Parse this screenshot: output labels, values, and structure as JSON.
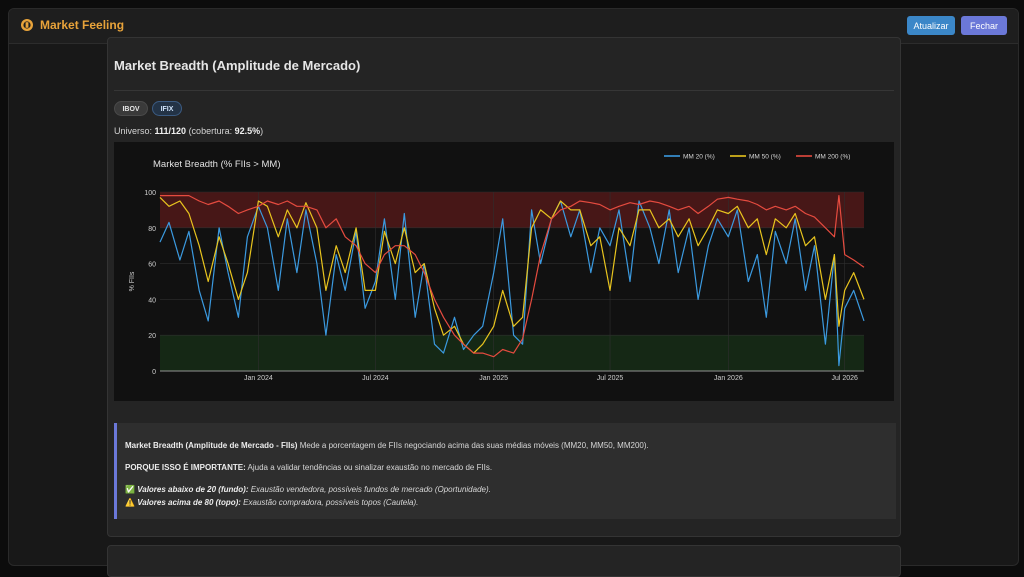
{
  "app": {
    "title": "Market Feeling"
  },
  "toolbar": {
    "refresh_label": "Atualizar",
    "close_label": "Fechar"
  },
  "card": {
    "title": "Market Breadth (Amplitude de Mercado)",
    "tabs": [
      {
        "label": "IBOV"
      },
      {
        "label": "IFIX"
      }
    ],
    "universe": {
      "prefix": "Universo: ",
      "count": "111/120",
      "mid": " (cobertura: ",
      "coverage": "92.5%",
      "suffix": ")"
    }
  },
  "info": {
    "l1_bold": "Market Breadth (Amplitude de Mercado - FIIs)",
    "l1_text": " Mede a porcentagem de FIIs negociando acima das suas médias móveis (MM20, MM50, MM200).",
    "l2_bold": "PORQUE ISSO É IMPORTANTE:",
    "l2_text": " Ajuda a validar tendências ou sinalizar exaustão no mercado de FIIs.",
    "l3_icon": "✅",
    "l3_bold": "Valores abaixo de 20 (fundo):",
    "l3_text": " Exaustão vendedora, possíveis fundos de mercado (Oportunidade).",
    "l4_icon": "⚠️",
    "l4_bold": "Valores acima de 80 (topo):",
    "l4_text": " Exaustão compradora, possíveis topos (Cautela)."
  },
  "colors": {
    "mm20": "#3b9ae0",
    "mm50": "#e8c41e",
    "mm200": "#e54b3f",
    "accent": "#6b78d8",
    "brand": "#e8a33a"
  },
  "chart_data": {
    "type": "line",
    "title": "Market Breadth (% FIIs > MM)",
    "xlabel": "",
    "ylabel": "% FIIs",
    "ylim": [
      0,
      100
    ],
    "yticks": [
      0,
      20,
      40,
      60,
      80,
      100
    ],
    "xlim": [
      "2023-08-01",
      "2026-07-31"
    ],
    "xticks": [
      {
        "date": "2024-01-01",
        "label": "Jan 2024"
      },
      {
        "date": "2024-07-01",
        "label": "Jul 2024"
      },
      {
        "date": "2025-01-01",
        "label": "Jan 2025"
      },
      {
        "date": "2025-07-01",
        "label": "Jul 2025"
      },
      {
        "date": "2026-01-01",
        "label": "Jan 2026"
      },
      {
        "date": "2026-07-01",
        "label": "Jul 2026"
      }
    ],
    "legend": "top-right",
    "zones": [
      {
        "from": 80,
        "to": 100,
        "color": "#5a1a1a"
      },
      {
        "from": 0,
        "to": 20,
        "color": "#173017"
      }
    ],
    "grid": true,
    "series": [
      {
        "name": "MM 20 (%)",
        "color": "#3b9ae0",
        "points": [
          [
            "2023-08-01",
            72
          ],
          [
            "2023-08-15",
            83
          ],
          [
            "2023-09-01",
            62
          ],
          [
            "2023-09-15",
            78
          ],
          [
            "2023-10-01",
            45
          ],
          [
            "2023-10-15",
            28
          ],
          [
            "2023-11-01",
            80
          ],
          [
            "2023-11-15",
            55
          ],
          [
            "2023-12-01",
            30
          ],
          [
            "2023-12-15",
            75
          ],
          [
            "2024-01-01",
            92
          ],
          [
            "2024-01-15",
            80
          ],
          [
            "2024-02-01",
            45
          ],
          [
            "2024-02-15",
            85
          ],
          [
            "2024-03-01",
            55
          ],
          [
            "2024-03-15",
            90
          ],
          [
            "2024-04-01",
            60
          ],
          [
            "2024-04-15",
            20
          ],
          [
            "2024-05-01",
            65
          ],
          [
            "2024-05-15",
            45
          ],
          [
            "2024-06-01",
            78
          ],
          [
            "2024-06-15",
            35
          ],
          [
            "2024-07-01",
            50
          ],
          [
            "2024-07-15",
            85
          ],
          [
            "2024-08-01",
            40
          ],
          [
            "2024-08-15",
            88
          ],
          [
            "2024-09-01",
            30
          ],
          [
            "2024-09-15",
            60
          ],
          [
            "2024-10-01",
            15
          ],
          [
            "2024-10-15",
            10
          ],
          [
            "2024-11-01",
            30
          ],
          [
            "2024-11-15",
            12
          ],
          [
            "2024-12-01",
            20
          ],
          [
            "2024-12-15",
            25
          ],
          [
            "2025-01-01",
            55
          ],
          [
            "2025-01-15",
            85
          ],
          [
            "2025-02-01",
            20
          ],
          [
            "2025-02-15",
            15
          ],
          [
            "2025-03-01",
            90
          ],
          [
            "2025-03-15",
            60
          ],
          [
            "2025-04-01",
            85
          ],
          [
            "2025-04-15",
            95
          ],
          [
            "2025-05-01",
            75
          ],
          [
            "2025-05-15",
            90
          ],
          [
            "2025-06-01",
            55
          ],
          [
            "2025-06-15",
            80
          ],
          [
            "2025-07-01",
            70
          ],
          [
            "2025-07-15",
            90
          ],
          [
            "2025-08-01",
            50
          ],
          [
            "2025-08-15",
            95
          ],
          [
            "2025-09-01",
            80
          ],
          [
            "2025-09-15",
            60
          ],
          [
            "2025-10-01",
            90
          ],
          [
            "2025-10-15",
            55
          ],
          [
            "2025-11-01",
            80
          ],
          [
            "2025-11-15",
            40
          ],
          [
            "2025-12-01",
            70
          ],
          [
            "2025-12-15",
            85
          ],
          [
            "2026-01-01",
            75
          ],
          [
            "2026-01-15",
            90
          ],
          [
            "2026-02-01",
            50
          ],
          [
            "2026-02-15",
            65
          ],
          [
            "2026-03-01",
            30
          ],
          [
            "2026-03-15",
            78
          ],
          [
            "2026-04-01",
            60
          ],
          [
            "2026-04-15",
            85
          ],
          [
            "2026-05-01",
            45
          ],
          [
            "2026-05-15",
            70
          ],
          [
            "2026-06-01",
            15
          ],
          [
            "2026-06-15",
            65
          ],
          [
            "2026-06-22",
            3
          ],
          [
            "2026-07-01",
            35
          ],
          [
            "2026-07-15",
            45
          ],
          [
            "2026-07-31",
            28
          ]
        ]
      },
      {
        "name": "MM 50 (%)",
        "color": "#e8c41e",
        "points": [
          [
            "2023-08-01",
            97
          ],
          [
            "2023-08-15",
            92
          ],
          [
            "2023-09-01",
            95
          ],
          [
            "2023-09-15",
            88
          ],
          [
            "2023-10-01",
            70
          ],
          [
            "2023-10-15",
            50
          ],
          [
            "2023-11-01",
            75
          ],
          [
            "2023-11-15",
            60
          ],
          [
            "2023-12-01",
            40
          ],
          [
            "2023-12-15",
            55
          ],
          [
            "2024-01-01",
            95
          ],
          [
            "2024-01-15",
            92
          ],
          [
            "2024-02-01",
            75
          ],
          [
            "2024-02-15",
            90
          ],
          [
            "2024-03-01",
            80
          ],
          [
            "2024-03-15",
            94
          ],
          [
            "2024-04-01",
            80
          ],
          [
            "2024-04-15",
            45
          ],
          [
            "2024-05-01",
            70
          ],
          [
            "2024-05-15",
            55
          ],
          [
            "2024-06-01",
            80
          ],
          [
            "2024-06-15",
            45
          ],
          [
            "2024-07-01",
            45
          ],
          [
            "2024-07-15",
            78
          ],
          [
            "2024-08-01",
            60
          ],
          [
            "2024-08-15",
            80
          ],
          [
            "2024-09-01",
            55
          ],
          [
            "2024-09-15",
            60
          ],
          [
            "2024-10-01",
            35
          ],
          [
            "2024-10-15",
            20
          ],
          [
            "2024-11-01",
            25
          ],
          [
            "2024-11-15",
            15
          ],
          [
            "2024-12-01",
            10
          ],
          [
            "2024-12-15",
            15
          ],
          [
            "2025-01-01",
            25
          ],
          [
            "2025-01-15",
            45
          ],
          [
            "2025-02-01",
            25
          ],
          [
            "2025-02-15",
            30
          ],
          [
            "2025-03-01",
            80
          ],
          [
            "2025-03-15",
            90
          ],
          [
            "2025-04-01",
            85
          ],
          [
            "2025-04-15",
            95
          ],
          [
            "2025-05-01",
            90
          ],
          [
            "2025-05-15",
            90
          ],
          [
            "2025-06-01",
            70
          ],
          [
            "2025-06-15",
            75
          ],
          [
            "2025-07-01",
            45
          ],
          [
            "2025-07-15",
            80
          ],
          [
            "2025-08-01",
            70
          ],
          [
            "2025-08-15",
            90
          ],
          [
            "2025-09-01",
            90
          ],
          [
            "2025-09-15",
            80
          ],
          [
            "2025-10-01",
            85
          ],
          [
            "2025-10-15",
            75
          ],
          [
            "2025-11-01",
            85
          ],
          [
            "2025-11-15",
            70
          ],
          [
            "2025-12-01",
            80
          ],
          [
            "2025-12-15",
            90
          ],
          [
            "2026-01-01",
            88
          ],
          [
            "2026-01-15",
            92
          ],
          [
            "2026-02-01",
            80
          ],
          [
            "2026-02-15",
            85
          ],
          [
            "2026-03-01",
            65
          ],
          [
            "2026-03-15",
            85
          ],
          [
            "2026-04-01",
            80
          ],
          [
            "2026-04-15",
            88
          ],
          [
            "2026-05-01",
            70
          ],
          [
            "2026-05-15",
            75
          ],
          [
            "2026-06-01",
            40
          ],
          [
            "2026-06-15",
            65
          ],
          [
            "2026-06-22",
            25
          ],
          [
            "2026-07-01",
            45
          ],
          [
            "2026-07-15",
            55
          ],
          [
            "2026-07-31",
            40
          ]
        ]
      },
      {
        "name": "MM 200 (%)",
        "color": "#e54b3f",
        "points": [
          [
            "2023-08-01",
            98
          ],
          [
            "2023-08-15",
            98
          ],
          [
            "2023-09-01",
            98
          ],
          [
            "2023-09-15",
            98
          ],
          [
            "2023-10-01",
            95
          ],
          [
            "2023-10-15",
            93
          ],
          [
            "2023-11-01",
            95
          ],
          [
            "2023-11-15",
            92
          ],
          [
            "2023-12-01",
            88
          ],
          [
            "2023-12-15",
            90
          ],
          [
            "2024-01-01",
            92
          ],
          [
            "2024-01-15",
            95
          ],
          [
            "2024-02-01",
            93
          ],
          [
            "2024-02-15",
            95
          ],
          [
            "2024-03-01",
            92
          ],
          [
            "2024-03-15",
            92
          ],
          [
            "2024-04-01",
            90
          ],
          [
            "2024-04-15",
            80
          ],
          [
            "2024-05-01",
            85
          ],
          [
            "2024-05-15",
            75
          ],
          [
            "2024-06-01",
            70
          ],
          [
            "2024-06-15",
            60
          ],
          [
            "2024-07-01",
            55
          ],
          [
            "2024-07-15",
            65
          ],
          [
            "2024-08-01",
            70
          ],
          [
            "2024-08-15",
            70
          ],
          [
            "2024-09-01",
            65
          ],
          [
            "2024-09-15",
            55
          ],
          [
            "2024-10-01",
            40
          ],
          [
            "2024-10-15",
            30
          ],
          [
            "2024-11-01",
            20
          ],
          [
            "2024-11-15",
            15
          ],
          [
            "2024-12-01",
            10
          ],
          [
            "2024-12-15",
            10
          ],
          [
            "2025-01-01",
            8
          ],
          [
            "2025-01-15",
            12
          ],
          [
            "2025-02-01",
            10
          ],
          [
            "2025-02-15",
            18
          ],
          [
            "2025-03-01",
            40
          ],
          [
            "2025-03-15",
            65
          ],
          [
            "2025-04-01",
            85
          ],
          [
            "2025-04-15",
            90
          ],
          [
            "2025-05-01",
            92
          ],
          [
            "2025-05-15",
            95
          ],
          [
            "2025-06-01",
            94
          ],
          [
            "2025-06-15",
            93
          ],
          [
            "2025-07-01",
            90
          ],
          [
            "2025-07-15",
            92
          ],
          [
            "2025-08-01",
            94
          ],
          [
            "2025-08-15",
            93
          ],
          [
            "2025-09-01",
            95
          ],
          [
            "2025-09-15",
            94
          ],
          [
            "2025-10-01",
            92
          ],
          [
            "2025-10-15",
            90
          ],
          [
            "2025-11-01",
            92
          ],
          [
            "2025-11-15",
            88
          ],
          [
            "2025-12-01",
            92
          ],
          [
            "2025-12-15",
            96
          ],
          [
            "2026-01-01",
            97
          ],
          [
            "2026-01-15",
            96
          ],
          [
            "2026-02-01",
            95
          ],
          [
            "2026-02-15",
            93
          ],
          [
            "2026-03-01",
            90
          ],
          [
            "2026-03-15",
            92
          ],
          [
            "2026-04-01",
            90
          ],
          [
            "2026-04-15",
            92
          ],
          [
            "2026-05-01",
            88
          ],
          [
            "2026-05-15",
            86
          ],
          [
            "2026-06-01",
            80
          ],
          [
            "2026-06-15",
            75
          ],
          [
            "2026-06-22",
            98
          ],
          [
            "2026-07-01",
            65
          ],
          [
            "2026-07-15",
            62
          ],
          [
            "2026-07-31",
            58
          ]
        ]
      }
    ]
  }
}
